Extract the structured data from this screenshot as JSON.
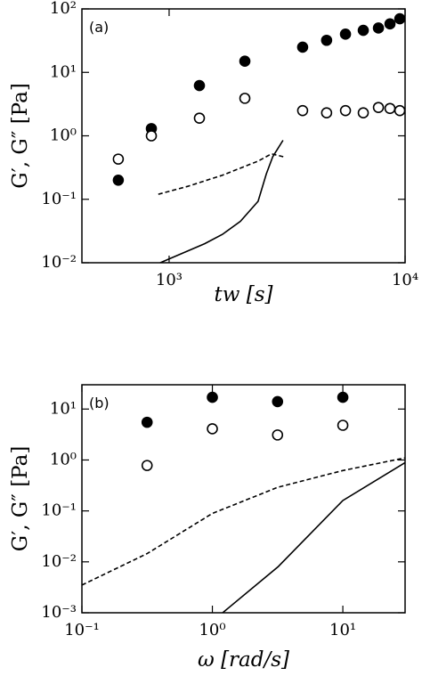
{
  "chart_data": [
    {
      "type": "scatter",
      "panel_label": "(a)",
      "x_label": "tw [s]",
      "y_label": "G′, G″ [Pa]",
      "xlog": true,
      "ylog": true,
      "xlim": [
        427,
        10000
      ],
      "ylim": [
        0.01,
        100
      ],
      "xticks": [
        {
          "value": 1000,
          "label": "10³"
        },
        {
          "value": 10000,
          "label": "10⁴"
        }
      ],
      "yticks": [
        {
          "value": 0.01,
          "label": "10⁻²"
        },
        {
          "value": 0.1,
          "label": "10⁻¹"
        },
        {
          "value": 1,
          "label": "10⁰"
        },
        {
          "value": 10,
          "label": "10¹"
        },
        {
          "value": 100,
          "label": "10²"
        }
      ],
      "series": [
        {
          "style": "filled-circle",
          "color": "#000000",
          "x": [
            609,
            841,
            1344,
            2094,
            3680,
            4650,
            5590,
            6650,
            7710,
            8630,
            9500
          ],
          "values": [
            0.2,
            1.3,
            6.2,
            15,
            25,
            32,
            40,
            46,
            50,
            58,
            70
          ]
        },
        {
          "style": "open-circle",
          "color": "#000000",
          "x": [
            609,
            841,
            1344,
            2094,
            3680,
            4650,
            5590,
            6650,
            7710,
            8630,
            9500
          ],
          "values": [
            0.43,
            1.0,
            1.9,
            3.9,
            2.5,
            2.3,
            2.5,
            2.3,
            2.8,
            2.7,
            2.5
          ]
        },
        {
          "style": "dashed-line",
          "color": "#000000",
          "x": [
            900,
            1200,
            1683,
            2383,
            2716,
            3100
          ],
          "values": [
            0.12,
            0.16,
            0.24,
            0.4,
            0.52,
            0.46
          ]
        },
        {
          "style": "solid-line",
          "color": "#000000",
          "x": [
            917,
            1415,
            1683,
            2004,
            2383,
            2580,
            2750,
            3040
          ],
          "values": [
            0.01,
            0.02,
            0.028,
            0.045,
            0.093,
            0.25,
            0.47,
            0.85
          ]
        }
      ]
    },
    {
      "type": "scatter",
      "panel_label": "(b)",
      "x_label": "ω [rad/s]",
      "y_label": "G′, G″ [Pa]",
      "xlog": true,
      "ylog": true,
      "xlim": [
        0.1,
        30
      ],
      "ylim": [
        0.001,
        30
      ],
      "xticks": [
        {
          "value": 0.1,
          "label": "10⁻¹"
        },
        {
          "value": 1,
          "label": "10⁰"
        },
        {
          "value": 10,
          "label": "10¹"
        }
      ],
      "yticks": [
        {
          "value": 0.001,
          "label": "10⁻³"
        },
        {
          "value": 0.01,
          "label": "10⁻²"
        },
        {
          "value": 0.1,
          "label": "10⁻¹"
        },
        {
          "value": 1,
          "label": "10⁰"
        },
        {
          "value": 10,
          "label": "10¹"
        }
      ],
      "series": [
        {
          "style": "filled-circle",
          "color": "#000000",
          "x": [
            0.316,
            1,
            3.16,
            10
          ],
          "values": [
            5.5,
            17,
            14,
            17
          ]
        },
        {
          "style": "open-circle",
          "color": "#000000",
          "x": [
            0.316,
            1,
            3.16,
            10
          ],
          "values": [
            0.78,
            4.1,
            3.1,
            4.8
          ]
        },
        {
          "style": "dashed-line",
          "color": "#000000",
          "x": [
            0.1,
            0.316,
            1,
            3.16,
            10,
            30
          ],
          "values": [
            0.0035,
            0.0145,
            0.089,
            0.29,
            0.62,
            1.1
          ]
        },
        {
          "style": "solid-line",
          "color": "#000000",
          "x": [
            1.2,
            3.2,
            10,
            30
          ],
          "values": [
            0.001,
            0.0081,
            0.16,
            0.89
          ]
        }
      ]
    }
  ]
}
